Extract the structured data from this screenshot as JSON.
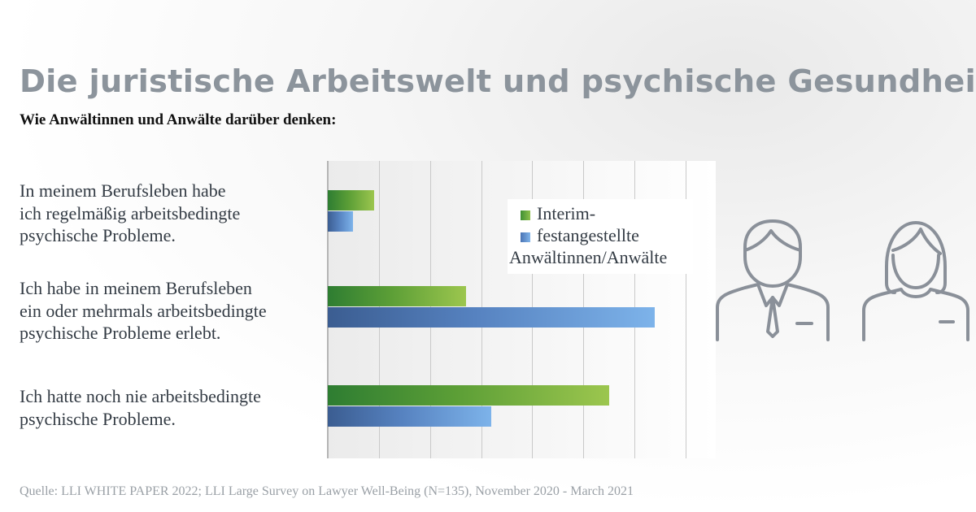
{
  "title": "Die juristische Arbeitswelt und psychische Gesundheit",
  "subtitle": "Wie Anwältinnen und Anwälte darüber denken:",
  "source": "Quelle: LLI WHITE PAPER 2022; LLI Large Survey on Lawyer Well-Being (N=135), November 2020 - March 2021",
  "icons": [
    "male-lawyer-icon",
    "female-lawyer-icon"
  ],
  "chart_data": {
    "type": "bar",
    "orientation": "horizontal",
    "categories": [
      "In meinem Berufsleben habe ich regelmäßig arbeitsbedingte psychische Probleme.",
      "Ich habe in meinem Berufsleben ein oder mehrmals arbeitsbedingte psychische Probleme erlebt.",
      "Ich hatte noch nie arbeitsbedingte psychische Probleme."
    ],
    "category_lines": [
      [
        "In meinem Berufsleben habe",
        "ich regelmäßig arbeitsbedingte",
        "psychische Probleme."
      ],
      [
        "Ich habe in meinem Berufsleben",
        "ein oder mehrmals arbeitsbedingte",
        "psychische Probleme erlebt."
      ],
      [
        "Ich hatte noch nie arbeitsbedingte",
        "psychische Probleme."
      ]
    ],
    "series": [
      {
        "name": "Interim-",
        "color": "#6aaa3a",
        "values": [
          9,
          27,
          55
        ]
      },
      {
        "name": "festangestellte Anwältinnen/Anwälte",
        "color": "#5a8fd6",
        "values": [
          5,
          64,
          32
        ]
      }
    ],
    "legend_lines": [
      "Interim-",
      "festangestellte",
      "Anwältinnen/Anwälte"
    ],
    "xlim": [
      0,
      70
    ],
    "grid": true,
    "legend_position": "top-right",
    "axis_tick_labels_visible": false
  }
}
